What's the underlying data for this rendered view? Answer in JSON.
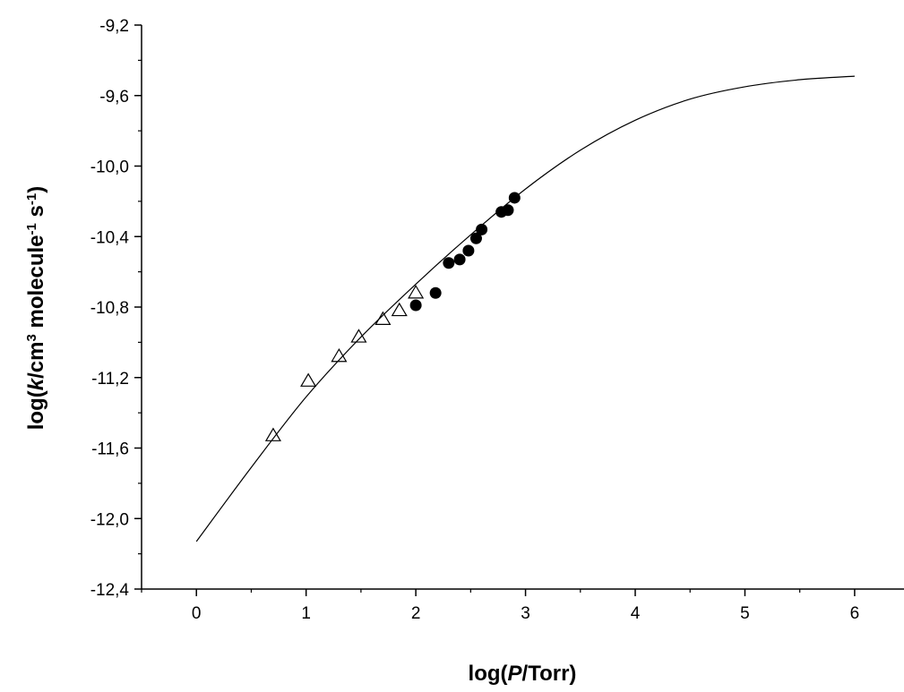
{
  "chart_data": {
    "type": "scatter",
    "title": "",
    "xlabel_parts": [
      {
        "text": "log(",
        "italic": false,
        "sup": false
      },
      {
        "text": "P",
        "italic": true,
        "sup": false
      },
      {
        "text": "/Torr)",
        "italic": false,
        "sup": false
      }
    ],
    "ylabel_parts": [
      {
        "text": "log(",
        "italic": false,
        "sup": false
      },
      {
        "text": "k",
        "italic": true,
        "sup": false
      },
      {
        "text": "/cm",
        "italic": false,
        "sup": false
      },
      {
        "text": "3",
        "italic": false,
        "sup": true
      },
      {
        "text": " molecule",
        "italic": false,
        "sup": false
      },
      {
        "text": "-1",
        "italic": false,
        "sup": true
      },
      {
        "text": " s",
        "italic": false,
        "sup": false
      },
      {
        "text": "-1",
        "italic": false,
        "sup": true
      },
      {
        "text": ")",
        "italic": false,
        "sup": false
      }
    ],
    "xlim": [
      -0.5,
      6.45
    ],
    "ylim": [
      -12.4,
      -9.2
    ],
    "x_ticks": [
      0,
      1,
      2,
      3,
      4,
      5,
      6
    ],
    "x_tick_labels": [
      "0",
      "1",
      "2",
      "3",
      "4",
      "5",
      "6"
    ],
    "y_ticks": [
      -12.4,
      -12.0,
      -11.6,
      -11.2,
      -10.8,
      -10.4,
      -10.0,
      -9.6,
      -9.2
    ],
    "y_tick_labels": [
      "-12,4",
      "-12,0",
      "-11,6",
      "-11,2",
      "-10,8",
      "-10,4",
      "-10,0",
      "-9,6",
      "-9,2"
    ],
    "grid": false,
    "legend": "none",
    "series": [
      {
        "marker": "open-triangle",
        "color": "#000000",
        "x": [
          0.7,
          1.02,
          1.3,
          1.48,
          1.7,
          1.85,
          2.0
        ],
        "y": [
          -11.53,
          -11.22,
          -11.08,
          -10.97,
          -10.87,
          -10.82,
          -10.72
        ]
      },
      {
        "marker": "filled-circle",
        "color": "#000000",
        "x": [
          2.0,
          2.18,
          2.3,
          2.4,
          2.48,
          2.55,
          2.6,
          2.78,
          2.84,
          2.9
        ],
        "y": [
          -10.79,
          -10.72,
          -10.55,
          -10.53,
          -10.48,
          -10.41,
          -10.36,
          -10.26,
          -10.25,
          -10.18
        ]
      },
      {
        "marker": "line",
        "color": "#000000",
        "x": [
          0,
          0.5,
          1.0,
          1.5,
          2.0,
          2.5,
          3.0,
          3.5,
          4.0,
          4.5,
          5.0,
          5.5,
          6.0
        ],
        "y": [
          -12.13,
          -11.71,
          -11.31,
          -10.97,
          -10.67,
          -10.39,
          -10.13,
          -9.91,
          -9.74,
          -9.62,
          -9.55,
          -9.51,
          -9.49
        ]
      }
    ]
  }
}
